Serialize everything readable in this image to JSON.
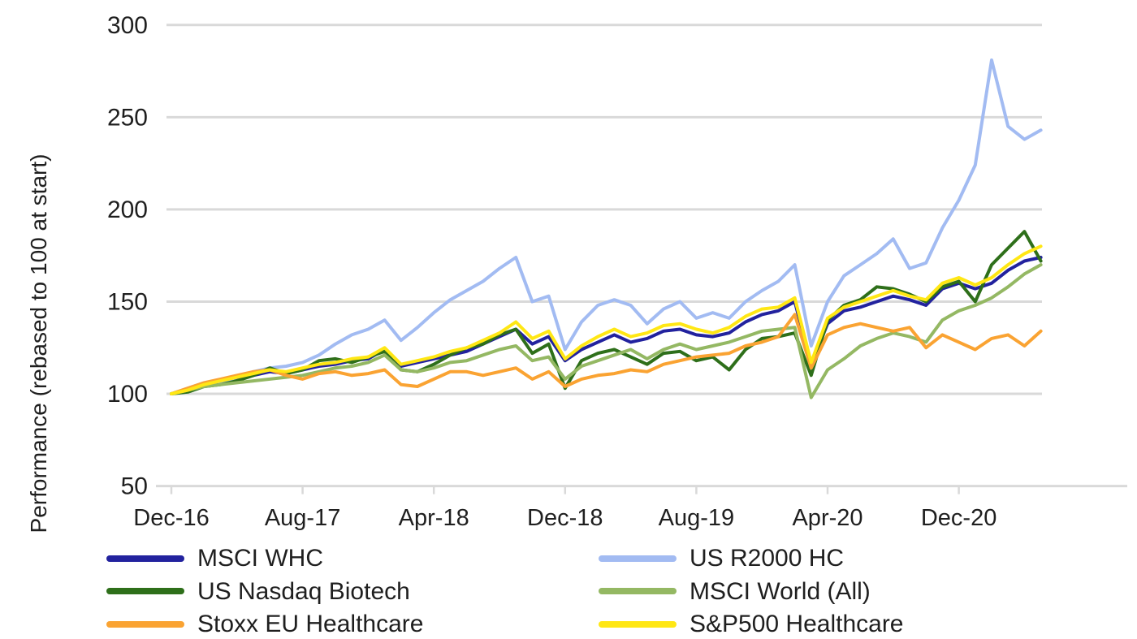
{
  "chart_data": {
    "type": "line",
    "title": "",
    "xlabel": "",
    "ylabel": "Performance (rebased to 100 at start)",
    "ylim": [
      50,
      300
    ],
    "yticks": [
      300,
      250,
      200,
      150,
      100,
      50
    ],
    "grid": "horizontal-gridlines-on",
    "legend_position": "bottom-two-columns",
    "x_unit": "month",
    "xtick_labels": [
      "Dec-16",
      "Aug-17",
      "Apr-18",
      "Dec-18",
      "Aug-19",
      "Apr-20",
      "Dec-20"
    ],
    "xtick_month_index": [
      0,
      8,
      16,
      24,
      32,
      40,
      48
    ],
    "x": [
      "Dec-16",
      "Jan-17",
      "Feb-17",
      "Mar-17",
      "Apr-17",
      "May-17",
      "Jun-17",
      "Jul-17",
      "Aug-17",
      "Sep-17",
      "Oct-17",
      "Nov-17",
      "Dec-17",
      "Jan-18",
      "Feb-18",
      "Mar-18",
      "Apr-18",
      "May-18",
      "Jun-18",
      "Jul-18",
      "Aug-18",
      "Sep-18",
      "Oct-18",
      "Nov-18",
      "Dec-18",
      "Jan-19",
      "Feb-19",
      "Mar-19",
      "Apr-19",
      "May-19",
      "Jun-19",
      "Jul-19",
      "Aug-19",
      "Sep-19",
      "Oct-19",
      "Nov-19",
      "Dec-19",
      "Jan-20",
      "Feb-20",
      "Mar-20",
      "Apr-20",
      "May-20",
      "Jun-20",
      "Jul-20",
      "Aug-20",
      "Sep-20",
      "Oct-20",
      "Nov-20",
      "Dec-20",
      "Jan-21",
      "Feb-21",
      "Mar-21",
      "Apr-21",
      "May-21"
    ],
    "series": [
      {
        "name": "MSCI WHC",
        "color": "#22229e",
        "values": [
          100,
          102,
          105,
          106,
          108,
          110,
          112,
          111,
          113,
          115,
          116,
          118,
          119,
          124,
          115,
          117,
          119,
          121,
          123,
          127,
          131,
          135,
          127,
          131,
          118,
          124,
          128,
          132,
          128,
          130,
          134,
          135,
          132,
          131,
          133,
          139,
          143,
          145,
          150,
          116,
          138,
          145,
          147,
          150,
          153,
          151,
          148,
          157,
          160,
          157,
          160,
          167,
          172,
          174
        ]
      },
      {
        "name": "US R2000 HC",
        "color": "#a2bbf2",
        "values": [
          100,
          103,
          106,
          106,
          109,
          112,
          114,
          115,
          117,
          121,
          127,
          132,
          135,
          140,
          129,
          136,
          144,
          151,
          156,
          161,
          168,
          174,
          150,
          153,
          124,
          139,
          148,
          151,
          148,
          138,
          146,
          150,
          141,
          144,
          141,
          150,
          156,
          161,
          170,
          126,
          150,
          164,
          170,
          176,
          184,
          168,
          171,
          190,
          205,
          224,
          281,
          245,
          238,
          243
        ]
      },
      {
        "name": "US Nasdaq Biotech",
        "color": "#2e6f1a",
        "values": [
          100,
          101,
          104,
          105,
          107,
          110,
          114,
          111,
          113,
          118,
          119,
          117,
          120,
          123,
          113,
          112,
          116,
          121,
          125,
          127,
          132,
          135,
          122,
          127,
          103,
          118,
          122,
          124,
          120,
          116,
          122,
          123,
          118,
          120,
          113,
          124,
          130,
          131,
          133,
          110,
          140,
          148,
          151,
          158,
          157,
          154,
          150,
          158,
          161,
          150,
          170,
          179,
          188,
          172
        ]
      },
      {
        "name": "MSCI World (All)",
        "color": "#94b863",
        "values": [
          100,
          102,
          104,
          105,
          106,
          107,
          108,
          109,
          110,
          112,
          114,
          115,
          117,
          121,
          113,
          112,
          114,
          117,
          118,
          121,
          124,
          126,
          118,
          120,
          108,
          115,
          118,
          121,
          124,
          119,
          124,
          127,
          124,
          126,
          128,
          131,
          134,
          135,
          136,
          98,
          113,
          119,
          126,
          130,
          133,
          131,
          128,
          140,
          145,
          148,
          152,
          158,
          165,
          170
        ]
      },
      {
        "name": "Stoxx EU Healthcare",
        "color": "#faa332",
        "values": [
          100,
          103,
          106,
          108,
          110,
          112,
          113,
          110,
          108,
          111,
          112,
          110,
          111,
          113,
          105,
          104,
          108,
          112,
          112,
          110,
          112,
          114,
          108,
          112,
          104,
          108,
          110,
          111,
          113,
          112,
          116,
          118,
          120,
          121,
          122,
          126,
          128,
          131,
          143,
          114,
          132,
          136,
          138,
          136,
          134,
          136,
          125,
          132,
          128,
          124,
          130,
          132,
          126,
          134
        ]
      },
      {
        "name": "S&P500 Healthcare",
        "color": "#ffe714",
        "values": [
          100,
          102,
          105,
          107,
          109,
          111,
          113,
          112,
          114,
          116,
          117,
          119,
          120,
          125,
          116,
          118,
          120,
          123,
          125,
          129,
          133,
          139,
          130,
          134,
          119,
          126,
          131,
          135,
          131,
          133,
          137,
          138,
          135,
          133,
          136,
          142,
          146,
          147,
          152,
          117,
          141,
          147,
          150,
          153,
          156,
          153,
          151,
          160,
          163,
          159,
          163,
          170,
          176,
          180
        ]
      }
    ]
  },
  "colors": {
    "background": "#ffffff",
    "gridline": "#d9d9d9",
    "axis": "#d9d9d9",
    "text": "#1f1f1f"
  }
}
